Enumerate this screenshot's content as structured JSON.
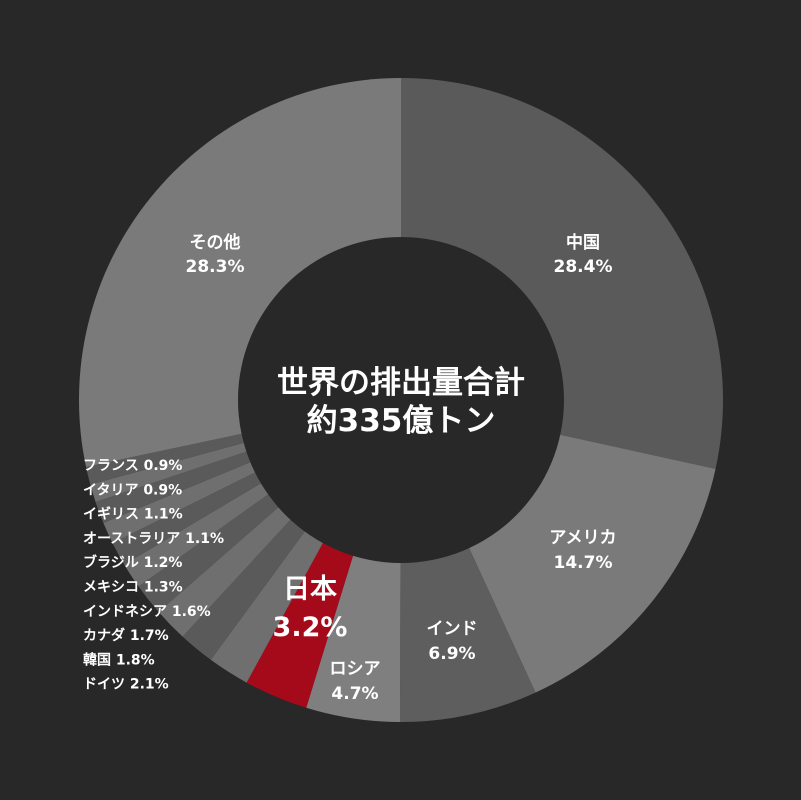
{
  "chart_data": {
    "type": "pie",
    "donut": true,
    "center_label": [
      "世界の排出量合計",
      "約335億トン"
    ],
    "slices": [
      {
        "name": "中国",
        "value": 28.4,
        "label": "28.4%",
        "color": "#5a5a5a"
      },
      {
        "name": "アメリカ",
        "value": 14.7,
        "label": "14.7%",
        "color": "#7a7a7a"
      },
      {
        "name": "インド",
        "value": 6.9,
        "label": "6.9%",
        "color": "#5e5e5e"
      },
      {
        "name": "ロシア",
        "value": 4.7,
        "label": "4.7%",
        "color": "#7f7f7f"
      },
      {
        "name": "日本",
        "value": 3.2,
        "label": "3.2%",
        "color": "#a50a1a"
      },
      {
        "name": "ドイツ",
        "value": 2.1,
        "label": "2.1%",
        "color": "#6f6f6f"
      },
      {
        "name": "韓国",
        "value": 1.8,
        "label": "1.8%",
        "color": "#5a5a5a"
      },
      {
        "name": "カナダ",
        "value": 1.7,
        "label": "1.7%",
        "color": "#6f6f6f"
      },
      {
        "name": "インドネシア",
        "value": 1.6,
        "label": "1.6%",
        "color": "#5a5a5a"
      },
      {
        "name": "メキシコ",
        "value": 1.3,
        "label": "1.3%",
        "color": "#6f6f6f"
      },
      {
        "name": "ブラジル",
        "value": 1.2,
        "label": "1.2%",
        "color": "#5a5a5a"
      },
      {
        "name": "オーストラリア",
        "value": 1.1,
        "label": "1.1%",
        "color": "#6f6f6f"
      },
      {
        "name": "イギリス",
        "value": 1.1,
        "label": "1.1%",
        "color": "#5a5a5a"
      },
      {
        "name": "イタリア",
        "value": 0.9,
        "label": "0.9%",
        "color": "#6f6f6f"
      },
      {
        "name": "フランス",
        "value": 0.9,
        "label": "0.9%",
        "color": "#5a5a5a"
      },
      {
        "name": "その他",
        "value": 28.3,
        "label": "28.3%",
        "color": "#7a7a7a"
      }
    ]
  }
}
